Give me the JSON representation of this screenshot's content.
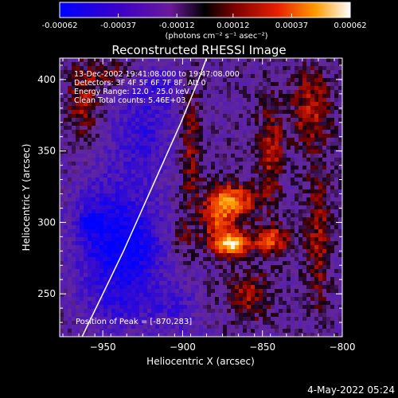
{
  "colorbar": {
    "ticks": [
      "-0.00062",
      "-0.00037",
      "-0.00012",
      "0.00012",
      "0.00037",
      "0.00062"
    ],
    "unit": "(photons cm⁻² s⁻¹ asec⁻²)",
    "range": [
      -0.00062,
      0.00062
    ]
  },
  "chart_data": {
    "type": "heatmap",
    "title": "Reconstructed RHESSI Image",
    "xlabel": "Heliocentric X (arcsec)",
    "ylabel": "Heliocentric Y (arcsec)",
    "xlim": [
      -977,
      -800
    ],
    "ylim": [
      220,
      415
    ],
    "xticks": [
      -950,
      -900,
      -850,
      -800
    ],
    "yticks": [
      250,
      300,
      350,
      400
    ],
    "annotations": [
      "13-Dec-2002 19:41:08.000 to 19:47:08.000",
      "Detectors: 3F 4F 5F 6F 7F 8F, Att 0",
      "Energy Range: 12.0 - 25.0 keV",
      "Clean    Total counts: 5.46E+03"
    ],
    "peak_label": "Position of Peak = [-870,283]",
    "peak": [
      -870,
      283
    ],
    "limb_curve": [
      [
        -963,
        220
      ],
      [
        -950,
        250
      ],
      [
        -937,
        280
      ],
      [
        -925,
        310
      ],
      [
        -913,
        340
      ],
      [
        -901,
        370
      ],
      [
        -890,
        400
      ],
      [
        -885,
        415
      ]
    ]
  },
  "footer": {
    "date": "4-May-2022 05:24"
  }
}
